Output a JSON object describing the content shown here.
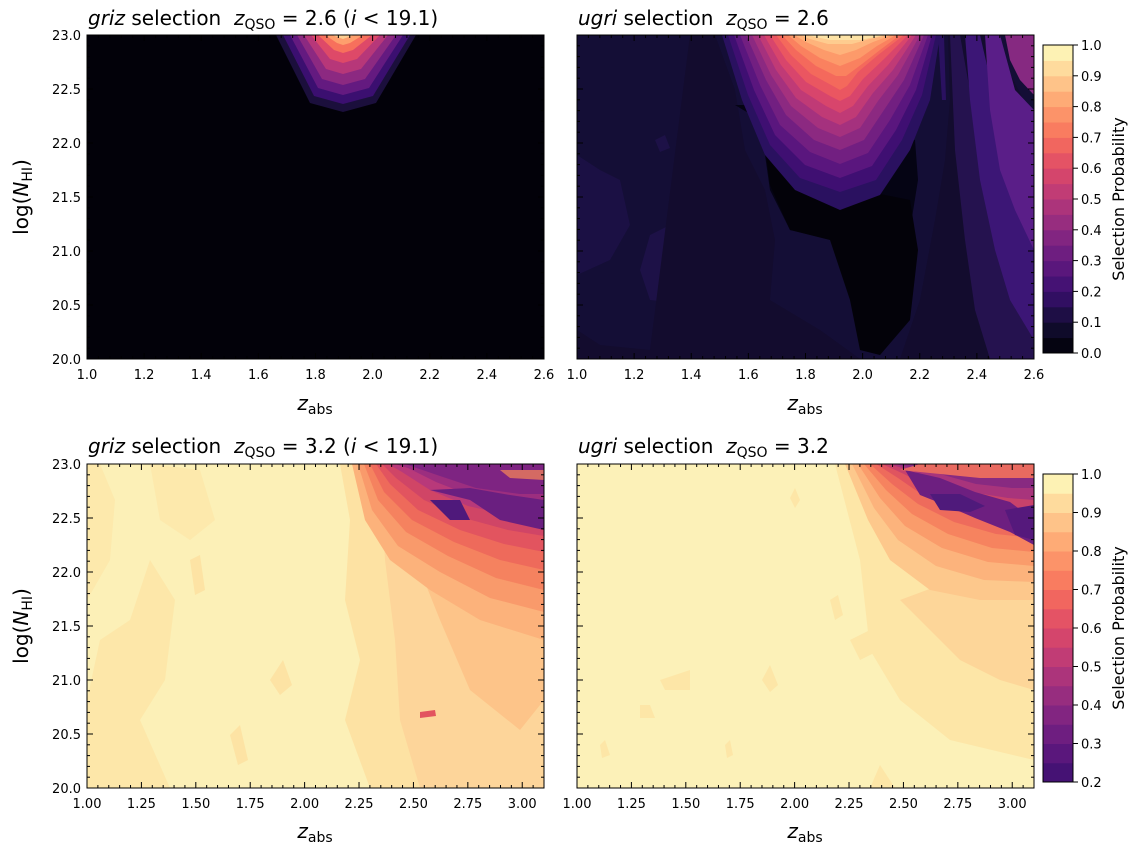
{
  "figure": {
    "ylabel": {
      "text": "log(",
      "main": "N",
      "sub": "HI",
      "close": ")"
    },
    "xlabel": {
      "main": "z",
      "sub": "abs"
    }
  },
  "chart_data": [
    {
      "id": "top-left",
      "type": "heatmap",
      "title": {
        "survey": "griz",
        "word": " selection  ",
        "z": "z",
        "zsub": "QSO",
        "eq": " = 2.6 (",
        "i": "i",
        "rest": " < 19.1)"
      },
      "xlabel": "z_abs",
      "ylabel": "log(N_HI)",
      "xlim": [
        1.0,
        2.6
      ],
      "ylim": [
        20.0,
        23.0
      ],
      "xticks": [
        "1.0",
        "1.2",
        "1.4",
        "1.6",
        "1.8",
        "2.0",
        "2.2",
        "2.4",
        "2.6"
      ],
      "yticks": [
        "20.0",
        "20.5",
        "21.0",
        "21.5",
        "22.0",
        "22.5",
        "23.0"
      ],
      "show_yticklabels": true,
      "colorscale": "magma",
      "vmin": 0.0,
      "vmax": 1.0,
      "colorbar": null
    },
    {
      "id": "top-right",
      "type": "heatmap",
      "title": {
        "survey": "ugri",
        "word": " selection  ",
        "z": "z",
        "zsub": "QSO",
        "eq": " = 2.6",
        "i": "",
        "rest": ""
      },
      "xlabel": "z_abs",
      "xlim": [
        1.0,
        2.6
      ],
      "ylim": [
        20.0,
        23.0
      ],
      "xticks": [
        "1.0",
        "1.2",
        "1.4",
        "1.6",
        "1.8",
        "2.0",
        "2.2",
        "2.4",
        "2.6"
      ],
      "show_yticklabels": false,
      "colorscale": "magma",
      "vmin": 0.0,
      "vmax": 1.0,
      "colorbar": {
        "label": "Selection Probability",
        "ticks": [
          "0.0",
          "0.1",
          "0.2",
          "0.3",
          "0.4",
          "0.5",
          "0.6",
          "0.7",
          "0.8",
          "0.9",
          "1.0"
        ],
        "range": [
          0.0,
          1.0
        ]
      }
    },
    {
      "id": "bottom-left",
      "type": "heatmap",
      "title": {
        "survey": "griz",
        "word": " selection  ",
        "z": "z",
        "zsub": "QSO",
        "eq": " = 3.2 (",
        "i": "i",
        "rest": " < 19.1)"
      },
      "xlabel": "z_abs",
      "ylabel": "log(N_HI)",
      "xlim": [
        1.0,
        3.1
      ],
      "ylim": [
        20.0,
        23.0
      ],
      "xticks": [
        "1.00",
        "1.25",
        "1.50",
        "1.75",
        "2.00",
        "2.25",
        "2.50",
        "2.75",
        "3.00"
      ],
      "yticks": [
        "20.0",
        "20.5",
        "21.0",
        "21.5",
        "22.0",
        "22.5",
        "23.0"
      ],
      "show_yticklabels": true,
      "colorscale": "magma",
      "vmin": 0.2,
      "vmax": 1.0,
      "colorbar": null
    },
    {
      "id": "bottom-right",
      "type": "heatmap",
      "title": {
        "survey": "ugri",
        "word": " selection  ",
        "z": "z",
        "zsub": "QSO",
        "eq": " = 3.2",
        "i": "",
        "rest": ""
      },
      "xlabel": "z_abs",
      "xlim": [
        1.0,
        3.1
      ],
      "ylim": [
        20.0,
        23.0
      ],
      "xticks": [
        "1.00",
        "1.25",
        "1.50",
        "1.75",
        "2.00",
        "2.25",
        "2.50",
        "2.75",
        "3.00"
      ],
      "show_yticklabels": false,
      "colorscale": "magma",
      "vmin": 0.2,
      "vmax": 1.0,
      "colorbar": {
        "label": "Selection Probability",
        "ticks": [
          "0.2",
          "0.3",
          "0.4",
          "0.5",
          "0.6",
          "0.7",
          "0.8",
          "0.9",
          "1.0"
        ],
        "range": [
          0.2,
          1.0
        ]
      }
    }
  ]
}
